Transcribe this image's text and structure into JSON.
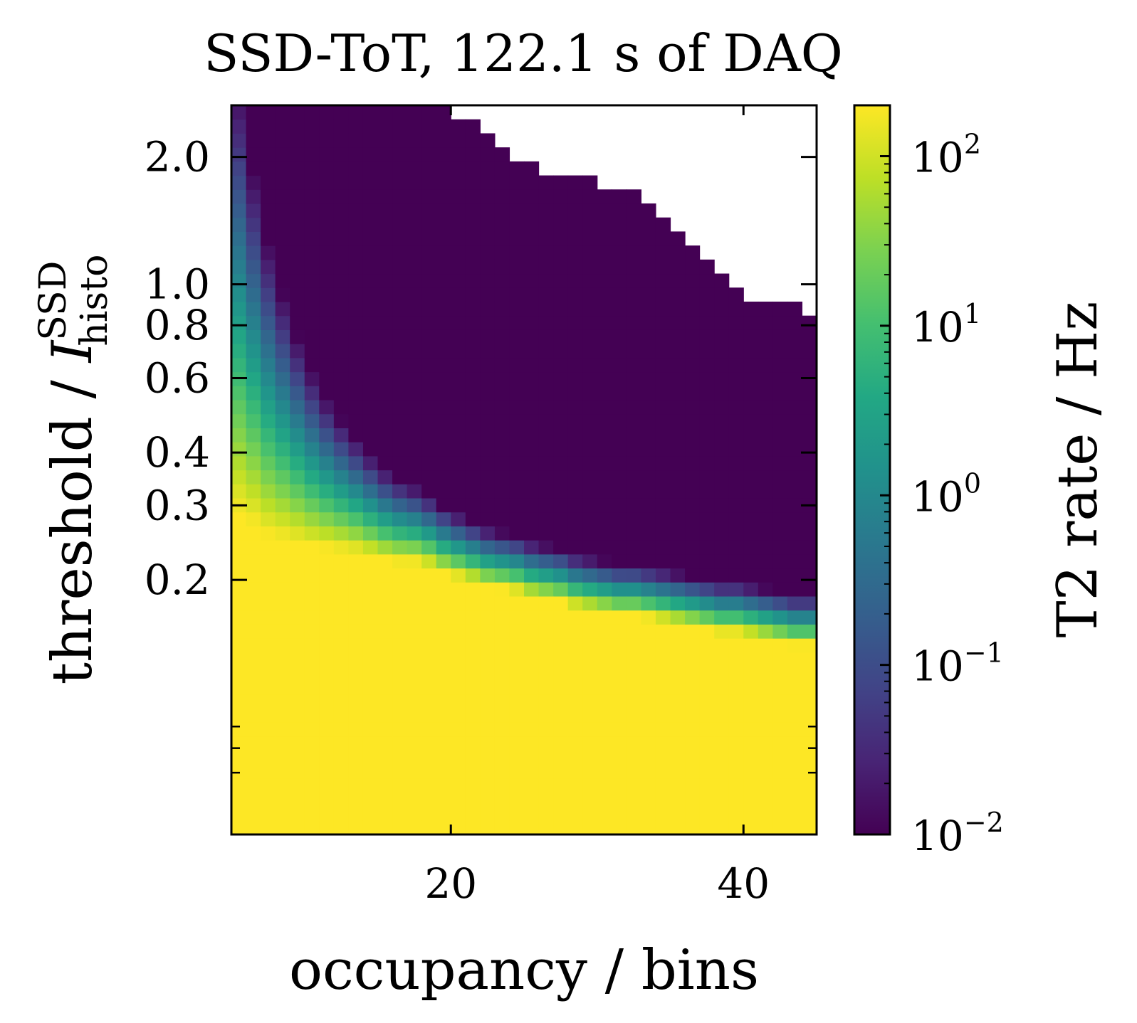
{
  "chart_data": {
    "type": "heatmap",
    "title": "SSD-ToT, 122.1 s of DAQ",
    "xlabel": "occupancy / bins",
    "ylabel": {
      "main": "threshold / ",
      "symbol": "I",
      "superscript": "SSD",
      "subscript": "histo"
    },
    "colorbar_label": "T2 rate / Hz",
    "colormap": "viridis",
    "colorbar_range_log10": [
      -2,
      2.3
    ],
    "colorbar_ticks": [
      {
        "exp": -2,
        "label_base": "10",
        "label_exp": "−2"
      },
      {
        "exp": -1,
        "label_base": "10",
        "label_exp": "−1"
      },
      {
        "exp": 0,
        "label_base": "10",
        "label_exp": "0"
      },
      {
        "exp": 1,
        "label_base": "10",
        "label_exp": "1"
      },
      {
        "exp": 2,
        "label_base": "10",
        "label_exp": "2"
      }
    ],
    "x_range": [
      5,
      45
    ],
    "x_ticks": [
      {
        "value": 20,
        "label": "20"
      },
      {
        "value": 40,
        "label": "40"
      }
    ],
    "y_scale": "log",
    "y_range": [
      0.05,
      2.65
    ],
    "y_ticks": [
      {
        "value": 0.2,
        "label": "0.2"
      },
      {
        "value": 0.3,
        "label": "0.3"
      },
      {
        "value": 0.4,
        "label": "0.4"
      },
      {
        "value": 0.6,
        "label": "0.6"
      },
      {
        "value": 0.8,
        "label": "0.8"
      },
      {
        "value": 1.0,
        "label": "1.0"
      },
      {
        "value": 2.0,
        "label": "2.0"
      }
    ],
    "y_minor_ticks": [
      0.07,
      0.08,
      0.09
    ],
    "white_region_boundary": {
      "x": [
        20,
        21,
        22,
        23,
        24,
        25,
        26,
        27,
        28,
        29,
        30,
        31,
        32,
        33,
        34,
        35,
        36,
        37,
        38,
        39,
        40,
        41,
        42,
        43,
        44
      ],
      "threshold": [
        2.65,
        2.45,
        2.3,
        2.15,
        2.05,
        1.97,
        1.9,
        1.85,
        1.85,
        1.8,
        1.76,
        1.72,
        1.72,
        1.65,
        1.55,
        1.42,
        1.32,
        1.2,
        1.08,
        0.97,
        0.94,
        0.92,
        0.91,
        0.91,
        0.86
      ]
    },
    "saturation_edge": {
      "x": [
        5,
        6,
        7,
        8,
        9,
        10,
        11,
        12,
        13,
        14,
        15,
        16,
        17,
        18,
        19,
        20,
        21,
        22,
        23,
        24,
        25,
        26,
        27,
        28,
        29,
        30,
        31,
        32,
        33,
        34,
        35,
        36,
        37,
        38,
        39,
        40,
        41,
        42,
        43,
        44
      ],
      "threshold": [
        0.29,
        0.28,
        0.26,
        0.25,
        0.25,
        0.24,
        0.24,
        0.235,
        0.235,
        0.23,
        0.225,
        0.22,
        0.22,
        0.22,
        0.21,
        0.205,
        0.2,
        0.195,
        0.19,
        0.19,
        0.185,
        0.18,
        0.18,
        0.175,
        0.17,
        0.17,
        0.165,
        0.165,
        0.165,
        0.16,
        0.16,
        0.155,
        0.155,
        0.15,
        0.15,
        0.15,
        0.145,
        0.145,
        0.14,
        0.14
      ]
    }
  }
}
